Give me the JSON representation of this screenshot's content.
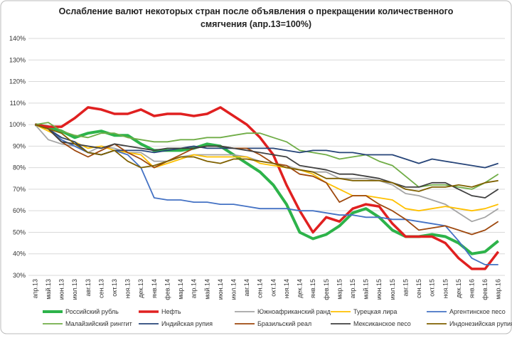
{
  "chart_data": {
    "type": "line",
    "title": "Ослабление валют некоторых стран после объявления о прекращении количественного",
    "subtitle": "смягчения  (апр.13=100%)",
    "categories": [
      "апр.13",
      "май.13",
      "июн.13",
      "июл.13",
      "авг.13",
      "сен.13",
      "окт.13",
      "ноя.13",
      "дек.13",
      "янв.14",
      "фев.14",
      "мар.14",
      "апр.14",
      "май.14",
      "июн.14",
      "июл.14",
      "авг.14",
      "сен.14",
      "окт.14",
      "ноя.14",
      "дек.14",
      "янв.15",
      "фев.15",
      "мар.15",
      "апр.15",
      "май.15",
      "июн.15",
      "июл.15",
      "авг.15",
      "сен.15",
      "окт.15",
      "ноя.15",
      "дек.15",
      "янв.16",
      "фев.16",
      "мар.16"
    ],
    "ylim": [
      30,
      140
    ],
    "yticks": [
      {
        "value": 30,
        "label": "30%"
      },
      {
        "value": 40,
        "label": "40%"
      },
      {
        "value": 50,
        "label": "50%"
      },
      {
        "value": 60,
        "label": "60%"
      },
      {
        "value": 70,
        "label": "70%"
      },
      {
        "value": 80,
        "label": "80%"
      },
      {
        "value": 90,
        "label": "90%"
      },
      {
        "value": 100,
        "label": "100%"
      },
      {
        "value": 110,
        "label": "110%"
      },
      {
        "value": 120,
        "label": "120%"
      },
      {
        "value": 130,
        "label": "130%"
      },
      {
        "value": 140,
        "label": "140%"
      }
    ],
    "grid": true,
    "legend": "bottom",
    "series": [
      {
        "name": "Российский рубль",
        "color": "#2db34a",
        "width": 4,
        "values": [
          100,
          99,
          97,
          94,
          96,
          97,
          95,
          95,
          91,
          88,
          88,
          88,
          89,
          91,
          90,
          86,
          82,
          78,
          72,
          63,
          50,
          47,
          49,
          53,
          59,
          61,
          57,
          51,
          48,
          48,
          49,
          48,
          45,
          40,
          41,
          46
        ]
      },
      {
        "name": "Нефть",
        "color": "#e02020",
        "width": 3.5,
        "values": [
          100,
          99,
          99,
          103,
          108,
          107,
          105,
          105,
          107,
          104,
          105,
          105,
          104,
          105,
          108,
          104,
          100,
          94,
          86,
          72,
          60,
          50,
          57,
          55,
          61,
          63,
          62,
          54,
          48,
          48,
          48,
          45,
          38,
          33,
          33,
          41
        ]
      },
      {
        "name": "Южноафриканский ранд",
        "color": "#a5a5a5",
        "width": 1.8,
        "values": [
          100,
          93,
          91,
          90,
          87,
          90,
          89,
          87,
          87,
          83,
          83,
          85,
          86,
          86,
          86,
          86,
          85,
          83,
          82,
          81,
          79,
          78,
          78,
          75,
          75,
          75,
          74,
          72,
          68,
          67,
          65,
          63,
          59,
          55,
          57,
          61
        ]
      },
      {
        "name": "Турецкая лира",
        "color": "#ffc000",
        "width": 1.8,
        "values": [
          100,
          97,
          94,
          92,
          89,
          90,
          88,
          87,
          86,
          80,
          82,
          84,
          86,
          85,
          85,
          85,
          85,
          82,
          81,
          80,
          79,
          77,
          73,
          70,
          67,
          67,
          66,
          65,
          61,
          60,
          61,
          62,
          61,
          60,
          61,
          63
        ]
      },
      {
        "name": "Аргентинское песо",
        "color": "#4472c4",
        "width": 1.8,
        "values": [
          100,
          98,
          93,
          90,
          87,
          86,
          88,
          86,
          80,
          66,
          65,
          65,
          64,
          64,
          63,
          63,
          62,
          61,
          61,
          61,
          60,
          60,
          59,
          58,
          58,
          57,
          57,
          56,
          56,
          55,
          54,
          53,
          46,
          38,
          35,
          35
        ]
      },
      {
        "name": "Малайзийский ринггит",
        "color": "#70ad47",
        "width": 1.8,
        "values": [
          100,
          101,
          97,
          95,
          94,
          96,
          96,
          94,
          93,
          92,
          92,
          93,
          93,
          94,
          94,
          95,
          96,
          96,
          94,
          92,
          88,
          87,
          86,
          84,
          85,
          86,
          83,
          81,
          76,
          71,
          72,
          72,
          71,
          70,
          73,
          77
        ]
      },
      {
        "name": "Индийская рупия",
        "color": "#264478",
        "width": 1.8,
        "values": [
          100,
          98,
          94,
          92,
          87,
          86,
          88,
          88,
          88,
          87,
          88,
          89,
          90,
          89,
          89,
          89,
          89,
          89,
          89,
          88,
          87,
          88,
          88,
          87,
          87,
          86,
          86,
          86,
          84,
          82,
          84,
          83,
          82,
          81,
          80,
          82
        ]
      },
      {
        "name": "Бразильский реал",
        "color": "#9e480e",
        "width": 1.8,
        "values": [
          100,
          98,
          92,
          88,
          85,
          88,
          91,
          87,
          84,
          80,
          83,
          86,
          89,
          90,
          90,
          89,
          89,
          86,
          82,
          81,
          77,
          76,
          73,
          64,
          67,
          67,
          63,
          60,
          56,
          51,
          52,
          53,
          51,
          49,
          51,
          55
        ]
      },
      {
        "name": "Мексиканское песо",
        "color": "#404040",
        "width": 1.8,
        "values": [
          100,
          98,
          92,
          91,
          90,
          89,
          91,
          90,
          89,
          88,
          89,
          89,
          89,
          90,
          90,
          89,
          88,
          87,
          86,
          85,
          81,
          80,
          79,
          77,
          77,
          76,
          75,
          73,
          71,
          71,
          73,
          73,
          70,
          67,
          66,
          70
        ]
      },
      {
        "name": "Индонезийская рупия",
        "color": "#7f6000",
        "width": 1.8,
        "values": [
          100,
          98,
          96,
          91,
          87,
          86,
          88,
          83,
          80,
          81,
          83,
          85,
          85,
          83,
          82,
          84,
          84,
          83,
          82,
          80,
          79,
          78,
          75,
          75,
          74,
          74,
          74,
          73,
          70,
          69,
          71,
          71,
          72,
          71,
          73,
          74
        ]
      }
    ]
  }
}
